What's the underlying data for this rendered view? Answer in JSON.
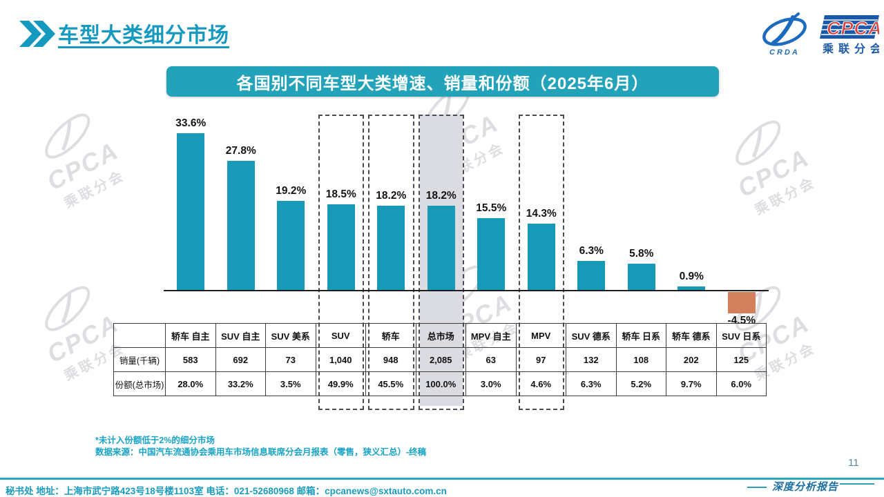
{
  "header": {
    "title": "车型大类细分市场"
  },
  "logo": {
    "cpca": "CPCA",
    "crda": "CRDA",
    "subtitle": "乘联分会"
  },
  "watermark": {
    "big": "CPCA",
    "small": "乘联分会"
  },
  "chart_data": {
    "type": "bar",
    "title": "各国别不同车型大类增速、销量和份额（2025年6月）",
    "categories": [
      "轿车 自主",
      "SUV 自主",
      "SUV 美系",
      "SUV",
      "轿车",
      "总市场",
      "MPV 自主",
      "MPV",
      "SUV 德系",
      "轿车 日系",
      "轿车 德系",
      "SUV 日系"
    ],
    "values": [
      33.6,
      27.8,
      19.2,
      18.5,
      18.2,
      18.2,
      15.5,
      14.3,
      6.3,
      5.8,
      0.9,
      -4.5
    ],
    "bar_color": "#1999B8",
    "negative_bar_color": "#D3805F",
    "highlight_gray_category": "总市场",
    "dashed_categories": [
      "SUV",
      "轿车",
      "总市场",
      "MPV"
    ],
    "legend_position": "none",
    "grid": false,
    "table": {
      "row_headers": [
        "销量(千辆)",
        "份额(总市场)"
      ],
      "rows": [
        [
          "583",
          "692",
          "73",
          "1,040",
          "948",
          "2,085",
          "63",
          "97",
          "132",
          "108",
          "202",
          "125"
        ],
        [
          "28.0%",
          "33.2%",
          "3.5%",
          "49.9%",
          "45.5%",
          "100.0%",
          "3.0%",
          "4.6%",
          "6.3%",
          "5.2%",
          "9.7%",
          "6.0%"
        ]
      ]
    }
  },
  "notes": {
    "line1": "*未计入份额低于2%的细分市场",
    "line2": "数据来源：中国汽车流通协会乘用车市场信息联席分会月报表（零售，狭义汇总）-终稿"
  },
  "footer": {
    "contact": "秘书处   地址：上海市武宁路423号18号楼1103室  电话：021-52680968   邮箱：cpcanews@sxtauto.com.cn",
    "page_number": "11",
    "report_label": "深度分析报告"
  }
}
